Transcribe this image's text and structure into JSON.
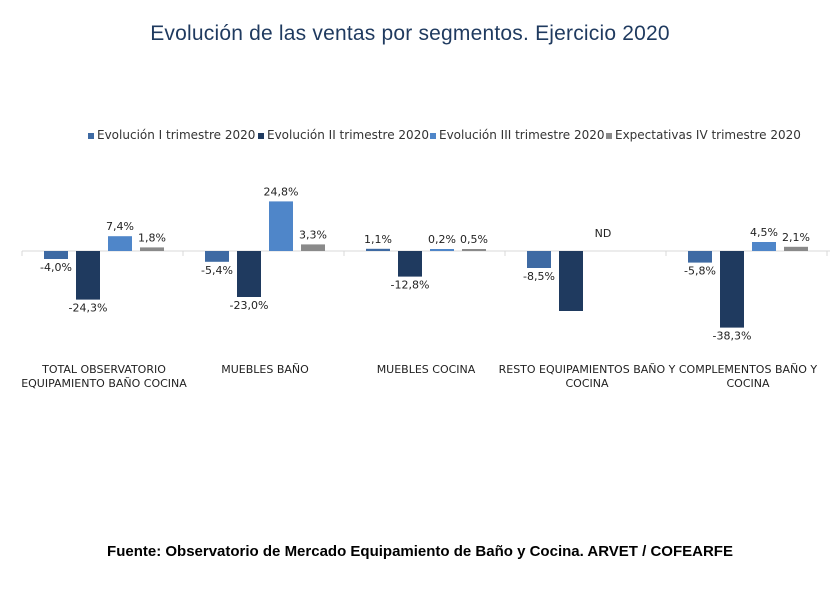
{
  "title": "Evolución de las ventas por segmentos. Ejercicio 2020",
  "source": "Fuente: Observatorio de Mercado Equipamiento de Baño y Cocina. ARVET / COFEARFE",
  "chart_data": {
    "type": "bar",
    "title": "Evolución de las ventas por segmentos. Ejercicio 2020",
    "xlabel": "",
    "ylabel": "",
    "unit": "%",
    "grid": false,
    "legend_position": "top",
    "categories": [
      [
        "TOTAL OBSERVATORIO",
        "EQUIPAMIENTO BAÑO COCINA"
      ],
      [
        "MUEBLES BAÑO"
      ],
      [
        "MUEBLES COCINA"
      ],
      [
        "RESTO EQUIPAMIENTOS BAÑO Y",
        "COCINA"
      ],
      [
        "COMPLEMENTOS BAÑO Y",
        "COCINA"
      ]
    ],
    "ylim": [
      -40,
      27
    ],
    "series": [
      {
        "name": "Evolución I trimestre 2020",
        "color": "#3e6aa3",
        "values": [
          -4.0,
          -5.4,
          1.1,
          -8.5,
          -5.8
        ],
        "labels": [
          "-4,0%",
          "-5,4%",
          "1,1%",
          "-8,5%",
          "-5,8%"
        ],
        "label_color": "#4a72a8"
      },
      {
        "name": "Evolución II trimestre 2020",
        "color": "#1f3a5f",
        "values": [
          -24.3,
          -23.0,
          -12.8,
          -30.0,
          -38.3
        ],
        "labels": [
          "-24,3%",
          "-23,0%",
          "-12,8%",
          "",
          "-38,3%"
        ],
        "label_color": "#222222"
      },
      {
        "name": "Evolución III trimestre 2020",
        "color": "#4f86c9",
        "values": [
          7.4,
          24.8,
          0.2,
          null,
          4.5
        ],
        "labels": [
          "7,4%",
          "24,8%",
          "0,2%",
          "ND",
          "4,5%"
        ],
        "label_color": "#222222"
      },
      {
        "name": "Expectativas IV trimestre 2020",
        "color": "#8a8a8a",
        "values": [
          1.8,
          3.3,
          0.5,
          null,
          2.1
        ],
        "labels": [
          "1,8%",
          "3,3%",
          "0,5%",
          "",
          "2,1%"
        ],
        "label_color": "#222222"
      }
    ]
  }
}
